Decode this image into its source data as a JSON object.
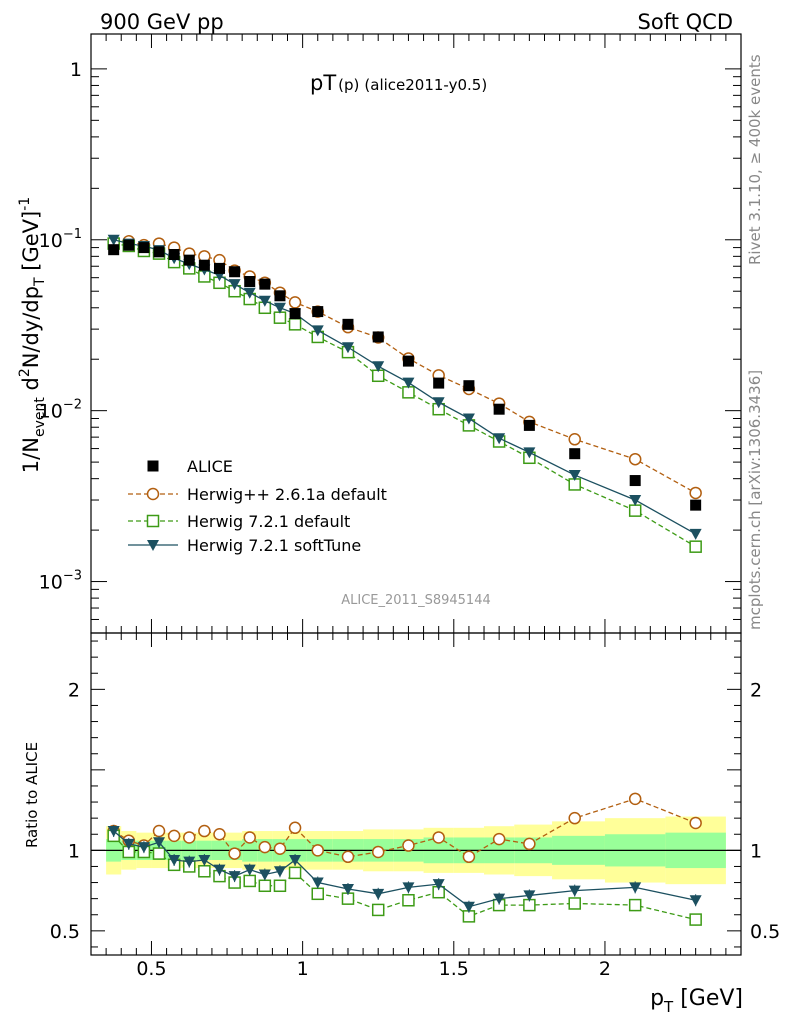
{
  "header": {
    "left": "900 GeV pp",
    "right": "Soft QCD"
  },
  "side": {
    "rivet": "Rivet 3.1.10, ≥ 400k events",
    "mcplots": "mcplots.cern.ch [arXiv:1306.3436]"
  },
  "main_panel": {
    "title_main": "pT",
    "title_sub": "(p)",
    "title_tag": "(alice2011-y0.5)",
    "watermark": "ALICE_2011_S8945144",
    "ylabel": "1/N_event d²N/dy/dp_T [GeV]⁻¹",
    "ylabel_parts": {
      "a": "1/N",
      "b": "event",
      "c": " d",
      "d": "2",
      "e": "N/dy/dp",
      "f": "T",
      "g": " [GeV]",
      "h": "-1"
    },
    "yticks": [
      {
        "value": 1,
        "label_base": "1",
        "label_exp": ""
      },
      {
        "value": 0.1,
        "label_base": "10",
        "label_exp": "−1"
      },
      {
        "value": 0.01,
        "label_base": "10",
        "label_exp": "−2"
      },
      {
        "value": 0.001,
        "label_base": "10",
        "label_exp": "−3"
      }
    ]
  },
  "ratio_panel": {
    "ylabel": "Ratio to ALICE",
    "yticks": [
      {
        "value": 2,
        "label": "2"
      },
      {
        "value": 1,
        "label": "1"
      },
      {
        "value": 0.5,
        "label": "0.5"
      }
    ]
  },
  "xaxis": {
    "label_main": "p",
    "label_sub": "T",
    "label_unit": " [GeV]",
    "ticks": [
      {
        "value": 0.5,
        "label": "0.5"
      },
      {
        "value": 1,
        "label": "1"
      },
      {
        "value": 1.5,
        "label": "1.5"
      },
      {
        "value": 2,
        "label": "2"
      }
    ]
  },
  "legend": {
    "placement": "lower-left",
    "entries": [
      {
        "key": "alice",
        "label": "ALICE"
      },
      {
        "key": "hpp",
        "label": "Herwig++ 2.6.1a default"
      },
      {
        "key": "h721",
        "label": "Herwig 7.2.1 default"
      },
      {
        "key": "soft",
        "label": "Herwig 7.2.1 softTune"
      }
    ]
  },
  "colors": {
    "alice": "#000000",
    "hpp": "#b25f10",
    "h721": "#3d9b16",
    "soft": "#1c5060",
    "band_inner": "#99ff99",
    "band_outer": "#ffff99"
  },
  "chart_data": {
    "type": "scatter",
    "x_scale": "linear",
    "main_y_scale": "log",
    "xlim": [
      0.3,
      2.45
    ],
    "ylim_main": [
      0.0005,
      1.6
    ],
    "ylim_ratio": [
      0.35,
      2.35
    ],
    "x": [
      0.375,
      0.425,
      0.475,
      0.525,
      0.575,
      0.625,
      0.675,
      0.725,
      0.775,
      0.825,
      0.875,
      0.925,
      0.975,
      1.05,
      1.15,
      1.25,
      1.35,
      1.45,
      1.55,
      1.65,
      1.75,
      1.9,
      2.1,
      2.3
    ],
    "alice": [
      0.0875,
      0.093,
      0.09,
      0.085,
      0.082,
      0.076,
      0.071,
      0.068,
      0.065,
      0.057,
      0.055,
      0.047,
      0.037,
      0.038,
      0.032,
      0.027,
      0.0195,
      0.0145,
      0.014,
      0.0102,
      0.0082,
      0.0056,
      0.0039,
      0.0028
    ],
    "series": [
      {
        "name": "Herwig++ 2.6.1a default",
        "key": "hpp",
        "values": [
          0.098,
          0.098,
          0.093,
          0.095,
          0.09,
          0.083,
          0.08,
          0.076,
          0.066,
          0.061,
          0.056,
          0.049,
          0.043,
          0.038,
          0.0308,
          0.0268,
          0.0202,
          0.0161,
          0.0134,
          0.011,
          0.0086,
          0.0068,
          0.0052,
          0.0033
        ],
        "ratio": [
          1.12,
          1.06,
          1.03,
          1.12,
          1.09,
          1.08,
          1.12,
          1.1,
          0.98,
          1.08,
          1.02,
          1.01,
          1.14,
          1.0,
          0.96,
          0.99,
          1.03,
          1.08,
          0.96,
          1.07,
          1.04,
          1.2,
          1.32,
          1.17
        ]
      },
      {
        "name": "Herwig 7.2.1 default",
        "key": "h721",
        "values": [
          0.095,
          0.092,
          0.086,
          0.083,
          0.074,
          0.068,
          0.061,
          0.056,
          0.05,
          0.045,
          0.04,
          0.035,
          0.032,
          0.027,
          0.022,
          0.016,
          0.0128,
          0.0102,
          0.0082,
          0.0066,
          0.0053,
          0.0037,
          0.0026,
          0.0016
        ],
        "ratio": [
          1.09,
          0.99,
          0.99,
          0.98,
          0.91,
          0.9,
          0.87,
          0.84,
          0.8,
          0.81,
          0.78,
          0.78,
          0.86,
          0.73,
          0.7,
          0.63,
          0.69,
          0.74,
          0.59,
          0.66,
          0.66,
          0.67,
          0.66,
          0.57
        ]
      },
      {
        "name": "Herwig 7.2.1 softTune",
        "key": "soft",
        "values": [
          0.1,
          0.095,
          0.092,
          0.087,
          0.078,
          0.072,
          0.067,
          0.062,
          0.055,
          0.049,
          0.044,
          0.04,
          0.037,
          0.0295,
          0.0235,
          0.0182,
          0.0146,
          0.0112,
          0.009,
          0.0069,
          0.0057,
          0.0042,
          0.003,
          0.0019
        ],
        "ratio": [
          1.12,
          1.04,
          1.02,
          1.05,
          0.94,
          0.93,
          0.94,
          0.88,
          0.84,
          0.88,
          0.85,
          0.87,
          0.94,
          0.8,
          0.76,
          0.73,
          0.77,
          0.79,
          0.65,
          0.7,
          0.72,
          0.75,
          0.77,
          0.69
        ]
      }
    ],
    "band_inner": [
      0.07,
      0.06,
      0.06,
      0.06,
      0.06,
      0.06,
      0.06,
      0.06,
      0.06,
      0.07,
      0.07,
      0.07,
      0.07,
      0.07,
      0.07,
      0.07,
      0.07,
      0.08,
      0.08,
      0.08,
      0.08,
      0.09,
      0.1,
      0.11
    ],
    "band_outer": [
      0.15,
      0.12,
      0.11,
      0.11,
      0.11,
      0.11,
      0.11,
      0.11,
      0.11,
      0.12,
      0.12,
      0.12,
      0.12,
      0.12,
      0.12,
      0.13,
      0.13,
      0.14,
      0.14,
      0.15,
      0.16,
      0.18,
      0.2,
      0.21
    ]
  }
}
